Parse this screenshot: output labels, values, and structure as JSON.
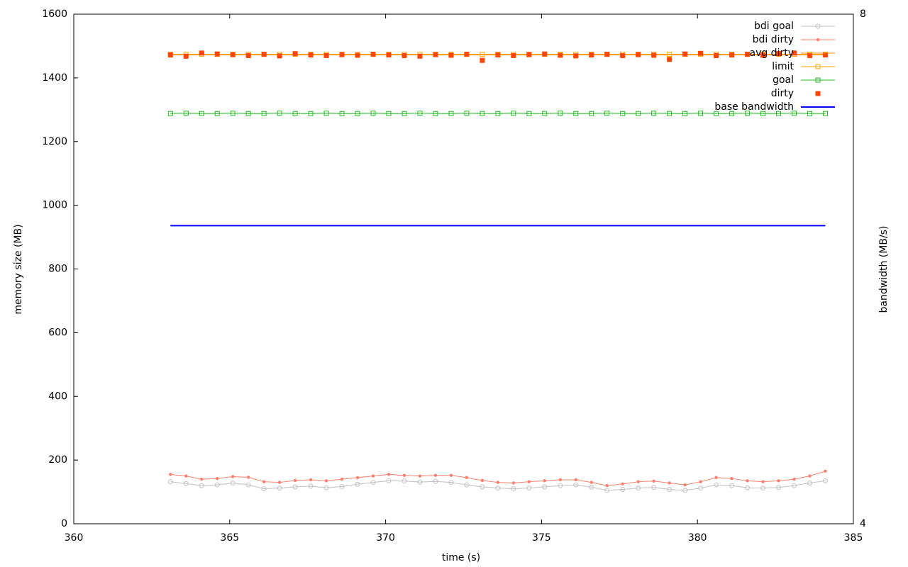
{
  "chart_data": {
    "type": "line",
    "xlabel": "time (s)",
    "ylabel": "memory size (MB)",
    "y2label": "bandwidth (MB/s)",
    "xlim": [
      360,
      385
    ],
    "xticks": [
      360,
      365,
      370,
      375,
      380,
      385
    ],
    "ylim": [
      0,
      1600
    ],
    "yticks": [
      0,
      200,
      400,
      600,
      800,
      1000,
      1200,
      1400,
      1600
    ],
    "y2lim": [
      4,
      8
    ],
    "y2ticks": [
      4,
      8
    ],
    "grid": false,
    "legend": "top-right",
    "x": [
      363.1,
      363.6,
      364.1,
      364.6,
      365.1,
      365.6,
      366.1,
      366.6,
      367.1,
      367.6,
      368.1,
      368.6,
      369.1,
      369.6,
      370.1,
      370.6,
      371.1,
      371.6,
      372.1,
      372.6,
      373.1,
      373.6,
      374.1,
      374.6,
      375.1,
      375.6,
      376.1,
      376.6,
      377.1,
      377.6,
      378.1,
      378.6,
      379.1,
      379.6,
      380.1,
      380.6,
      381.1,
      381.6,
      382.1,
      382.6,
      383.1,
      383.6,
      384.1
    ],
    "series": [
      {
        "name": "bdi goal",
        "color": "#c0c0c0",
        "marker": "circle-open",
        "line": true,
        "values": [
          132,
          126,
          120,
          122,
          128,
          122,
          110,
          112,
          116,
          118,
          113,
          117,
          124,
          130,
          135,
          134,
          131,
          133,
          130,
          122,
          116,
          112,
          110,
          112,
          116,
          120,
          122,
          115,
          105,
          108,
          112,
          114,
          108,
          105,
          112,
          122,
          120,
          113,
          112,
          114,
          120,
          128,
          135
        ]
      },
      {
        "name": "bdi dirty",
        "color": "#fa8072",
        "marker": "circle",
        "line": true,
        "values": [
          155,
          150,
          140,
          142,
          148,
          146,
          132,
          130,
          136,
          138,
          135,
          140,
          145,
          150,
          155,
          152,
          150,
          152,
          152,
          145,
          136,
          130,
          128,
          132,
          135,
          138,
          138,
          130,
          120,
          125,
          132,
          134,
          128,
          122,
          132,
          145,
          142,
          135,
          132,
          135,
          140,
          150,
          165
        ]
      },
      {
        "name": "avg dirty",
        "color": "#ff8c00",
        "marker": "none",
        "line": true,
        "values": [
          1472,
          1472,
          1472,
          1472,
          1472,
          1472,
          1472,
          1472,
          1472,
          1472,
          1472,
          1472,
          1472,
          1472,
          1472,
          1472,
          1472,
          1472,
          1472,
          1472,
          1472,
          1472,
          1472,
          1472,
          1472,
          1472,
          1472,
          1472,
          1472,
          1472,
          1472,
          1472,
          1472,
          1472,
          1472,
          1472,
          1472,
          1472,
          1472,
          1472,
          1472,
          1472,
          1472
        ]
      },
      {
        "name": "limit",
        "color": "#ffa500",
        "marker": "square-open",
        "line": true,
        "values": [
          1474,
          1474,
          1474,
          1474,
          1474,
          1474,
          1474,
          1474,
          1474,
          1474,
          1474,
          1474,
          1474,
          1474,
          1474,
          1474,
          1474,
          1474,
          1474,
          1474,
          1474,
          1474,
          1474,
          1474,
          1474,
          1474,
          1474,
          1474,
          1474,
          1474,
          1474,
          1474,
          1474,
          1474,
          1474,
          1474,
          1474,
          1474,
          1474,
          1474,
          1474,
          1474,
          1474
        ]
      },
      {
        "name": "goal",
        "color": "#22bb22",
        "marker": "square-open",
        "line": true,
        "values": [
          1288,
          1289,
          1288,
          1288,
          1289,
          1288,
          1288,
          1289,
          1288,
          1288,
          1289,
          1288,
          1288,
          1289,
          1288,
          1288,
          1289,
          1288,
          1288,
          1289,
          1288,
          1288,
          1289,
          1288,
          1288,
          1289,
          1288,
          1288,
          1289,
          1288,
          1288,
          1289,
          1288,
          1288,
          1289,
          1288,
          1288,
          1289,
          1288,
          1288,
          1289,
          1288,
          1288
        ]
      },
      {
        "name": "dirty",
        "color": "#ff4500",
        "marker": "square",
        "line": false,
        "values": [
          1472,
          1468,
          1478,
          1475,
          1473,
          1470,
          1474,
          1469,
          1476,
          1472,
          1470,
          1473,
          1471,
          1474,
          1472,
          1470,
          1468,
          1473,
          1471,
          1474,
          1455,
          1472,
          1470,
          1473,
          1475,
          1471,
          1469,
          1472,
          1474,
          1470,
          1473,
          1471,
          1458,
          1475,
          1477,
          1470,
          1472,
          1474,
          1471,
          1476,
          1478,
          1470,
          1472
        ]
      },
      {
        "name": "base bandwidth",
        "color": "#0000ff",
        "marker": "none",
        "line": true,
        "axis": "y2",
        "values": [
          6.34,
          6.34,
          6.34,
          6.34,
          6.34,
          6.34,
          6.34,
          6.34,
          6.34,
          6.34,
          6.34,
          6.34,
          6.34,
          6.34,
          6.34,
          6.34,
          6.34,
          6.34,
          6.34,
          6.34,
          6.34,
          6.34,
          6.34,
          6.34,
          6.34,
          6.34,
          6.34,
          6.34,
          6.34,
          6.34,
          6.34,
          6.34,
          6.34,
          6.34,
          6.34,
          6.34,
          6.34,
          6.34,
          6.34,
          6.34,
          6.34,
          6.34,
          6.34
        ]
      }
    ]
  }
}
